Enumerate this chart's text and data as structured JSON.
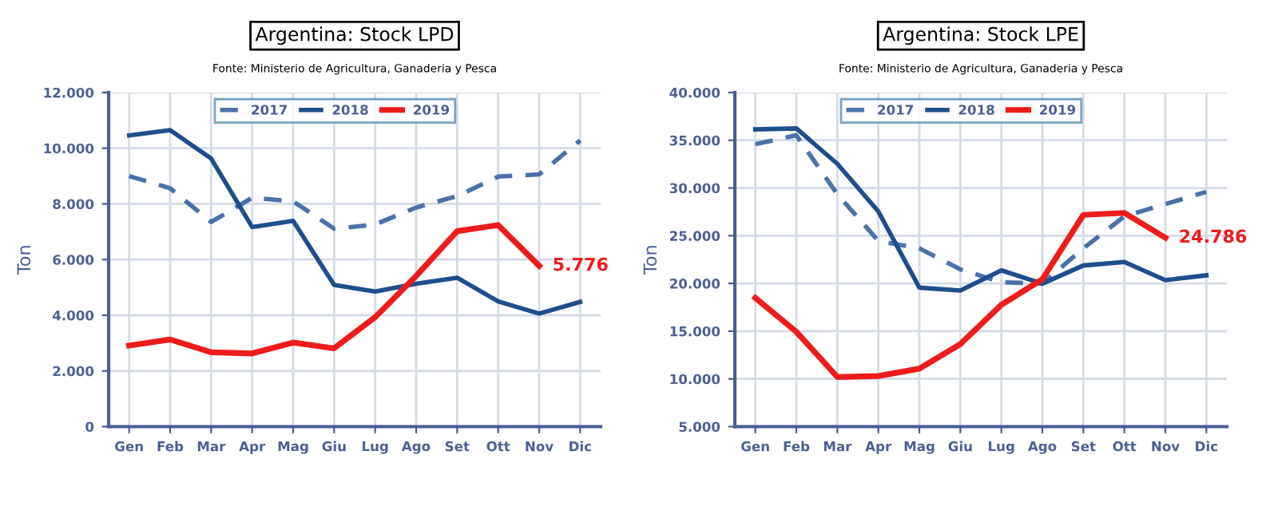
{
  "chart_data": [
    {
      "type": "line",
      "title": "Argentina: Stock LPD",
      "subtitle": "Fonte: Ministerio de Agricultura, Ganaderia y Pesca",
      "ylabel": "Ton",
      "categories": [
        "Gen",
        "Feb",
        "Mar",
        "Apr",
        "Mag",
        "Giu",
        "Lug",
        "Ago",
        "Set",
        "Ott",
        "Nov",
        "Dic"
      ],
      "series": [
        {
          "name": "2017",
          "color": "#4a72a8",
          "line_style": "dashed",
          "values": [
            9000,
            8560,
            7350,
            8220,
            8090,
            7110,
            7260,
            7870,
            8280,
            8980,
            9060,
            10280
          ]
        },
        {
          "name": "2018",
          "color": "#1f4e8c",
          "line_style": "solid",
          "values": [
            10460,
            10650,
            9630,
            7170,
            7390,
            5090,
            4850,
            5130,
            5350,
            4500,
            4060,
            4480
          ]
        },
        {
          "name": "2019",
          "color": "#ee1c1c",
          "line_style": "solid",
          "values": [
            2910,
            3130,
            2670,
            2630,
            3020,
            2810,
            3930,
            5410,
            7020,
            7240,
            5776,
            null
          ]
        }
      ],
      "annotations": [
        {
          "text": "5.776",
          "x": "Nov",
          "y": 5776
        }
      ],
      "ylim": [
        0,
        12000
      ],
      "yticks": [
        {
          "value": 0,
          "label": "0"
        },
        {
          "value": 2000,
          "label": "2.000"
        },
        {
          "value": 4000,
          "label": "4.000"
        },
        {
          "value": 6000,
          "label": "6.000"
        },
        {
          "value": 8000,
          "label": "8.000"
        },
        {
          "value": 10000,
          "label": "10.000"
        },
        {
          "value": 12000,
          "label": "12.000"
        }
      ],
      "grid": true,
      "legend": "top"
    },
    {
      "type": "line",
      "title": "Argentina: Stock LPE",
      "subtitle": "Fonte: Ministerio de Agricultura, Ganaderia y Pesca",
      "ylabel": "Ton",
      "categories": [
        "Gen",
        "Feb",
        "Mar",
        "Apr",
        "Mag",
        "Giu",
        "Lug",
        "Ago",
        "Set",
        "Ott",
        "Nov",
        "Dic"
      ],
      "series": [
        {
          "name": "2017",
          "color": "#4a72a8",
          "line_style": "dashed",
          "values": [
            34590,
            35520,
            29340,
            24450,
            23680,
            21470,
            20130,
            19980,
            23680,
            27030,
            28310,
            29600
          ]
        },
        {
          "name": "2018",
          "color": "#1f4e8c",
          "line_style": "solid",
          "values": [
            36140,
            36240,
            32530,
            27540,
            19560,
            19260,
            21370,
            19980,
            21880,
            22240,
            20340,
            20850
          ]
        },
        {
          "name": "2019",
          "color": "#ee1c1c",
          "line_style": "solid",
          "values": [
            18480,
            14930,
            10200,
            10300,
            11070,
            13650,
            17760,
            20440,
            27180,
            27390,
            24786,
            null
          ]
        }
      ],
      "annotations": [
        {
          "text": "24.786",
          "x": "Nov",
          "y": 24786
        }
      ],
      "ylim": [
        5000,
        40000
      ],
      "yticks": [
        {
          "value": 5000,
          "label": "5.000"
        },
        {
          "value": 10000,
          "label": "10.000"
        },
        {
          "value": 15000,
          "label": "15.000"
        },
        {
          "value": 20000,
          "label": "20.000"
        },
        {
          "value": 25000,
          "label": "25.000"
        },
        {
          "value": 30000,
          "label": "30.000"
        },
        {
          "value": 35000,
          "label": "35.000"
        },
        {
          "value": 40000,
          "label": "40.000"
        }
      ],
      "grid": true,
      "legend": "top"
    }
  ]
}
